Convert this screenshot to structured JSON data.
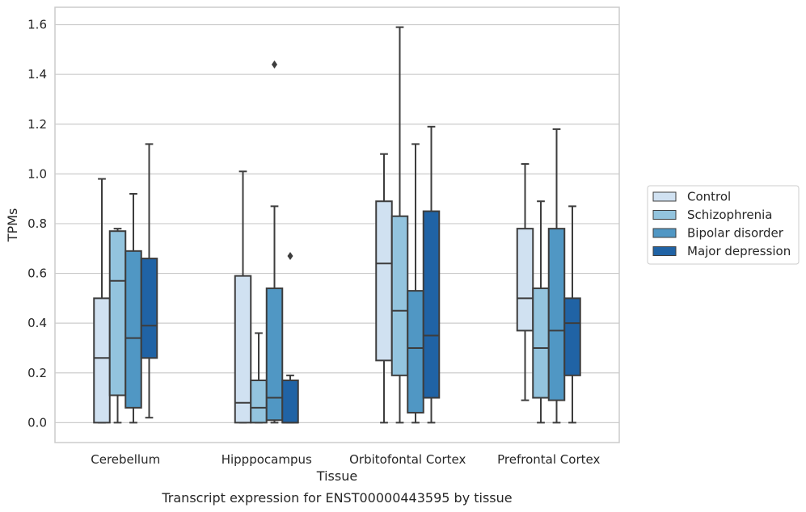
{
  "chart_data": {
    "type": "box",
    "caption": "Transcript expression for ENST00000443595 by tissue",
    "xlabel": "Tissue",
    "ylabel": "TPMs",
    "ylim": [
      -0.08,
      1.67
    ],
    "yticks": [
      0.0,
      0.2,
      0.4,
      0.6,
      0.8,
      1.0,
      1.2,
      1.4,
      1.6
    ],
    "ytick_labels": [
      "0.0",
      "0.2",
      "0.4",
      "0.6",
      "0.8",
      "1.0",
      "1.2",
      "1.4",
      "1.6"
    ],
    "grid": "horizontal",
    "legend_position": "outside-right",
    "categories": [
      "Cerebellum",
      "Hipppocampus",
      "Orbitofontal Cortex",
      "Prefrontal Cortex"
    ],
    "series": [
      {
        "name": "Control",
        "color": "#d0e1f1",
        "boxes": [
          {
            "whislo": 0.0,
            "q1": 0.0,
            "med": 0.26,
            "q3": 0.5,
            "whishi": 0.98,
            "fliers": []
          },
          {
            "whislo": 0.0,
            "q1": 0.0,
            "med": 0.08,
            "q3": 0.59,
            "whishi": 1.01,
            "fliers": []
          },
          {
            "whislo": 0.0,
            "q1": 0.25,
            "med": 0.64,
            "q3": 0.89,
            "whishi": 1.08,
            "fliers": []
          },
          {
            "whislo": 0.09,
            "q1": 0.37,
            "med": 0.5,
            "q3": 0.78,
            "whishi": 1.04,
            "fliers": []
          }
        ]
      },
      {
        "name": "Schizophrenia",
        "color": "#93c4de",
        "boxes": [
          {
            "whislo": 0.0,
            "q1": 0.11,
            "med": 0.57,
            "q3": 0.77,
            "whishi": 0.78,
            "fliers": []
          },
          {
            "whislo": 0.0,
            "q1": 0.0,
            "med": 0.06,
            "q3": 0.17,
            "whishi": 0.36,
            "fliers": []
          },
          {
            "whislo": 0.0,
            "q1": 0.19,
            "med": 0.45,
            "q3": 0.83,
            "whishi": 1.59,
            "fliers": []
          },
          {
            "whislo": 0.0,
            "q1": 0.1,
            "med": 0.3,
            "q3": 0.54,
            "whishi": 0.89,
            "fliers": []
          }
        ]
      },
      {
        "name": "Bipolar disorder",
        "color": "#5097c4",
        "boxes": [
          {
            "whislo": 0.0,
            "q1": 0.06,
            "med": 0.34,
            "q3": 0.69,
            "whishi": 0.92,
            "fliers": []
          },
          {
            "whislo": 0.0,
            "q1": 0.01,
            "med": 0.1,
            "q3": 0.54,
            "whishi": 0.87,
            "fliers": [
              1.44
            ]
          },
          {
            "whislo": 0.0,
            "q1": 0.04,
            "med": 0.3,
            "q3": 0.53,
            "whishi": 1.12,
            "fliers": []
          },
          {
            "whislo": 0.0,
            "q1": 0.09,
            "med": 0.37,
            "q3": 0.78,
            "whishi": 1.18,
            "fliers": []
          }
        ]
      },
      {
        "name": "Major depression",
        "color": "#2063a5",
        "boxes": [
          {
            "whislo": 0.02,
            "q1": 0.26,
            "med": 0.39,
            "q3": 0.66,
            "whishi": 1.12,
            "fliers": []
          },
          {
            "whislo": 0.0,
            "q1": 0.0,
            "med": 0.0,
            "q3": 0.17,
            "whishi": 0.19,
            "fliers": [
              0.67
            ]
          },
          {
            "whislo": 0.0,
            "q1": 0.1,
            "med": 0.35,
            "q3": 0.85,
            "whishi": 1.19,
            "fliers": []
          },
          {
            "whislo": 0.0,
            "q1": 0.19,
            "med": 0.4,
            "q3": 0.5,
            "whishi": 0.87,
            "fliers": []
          }
        ]
      }
    ]
  }
}
